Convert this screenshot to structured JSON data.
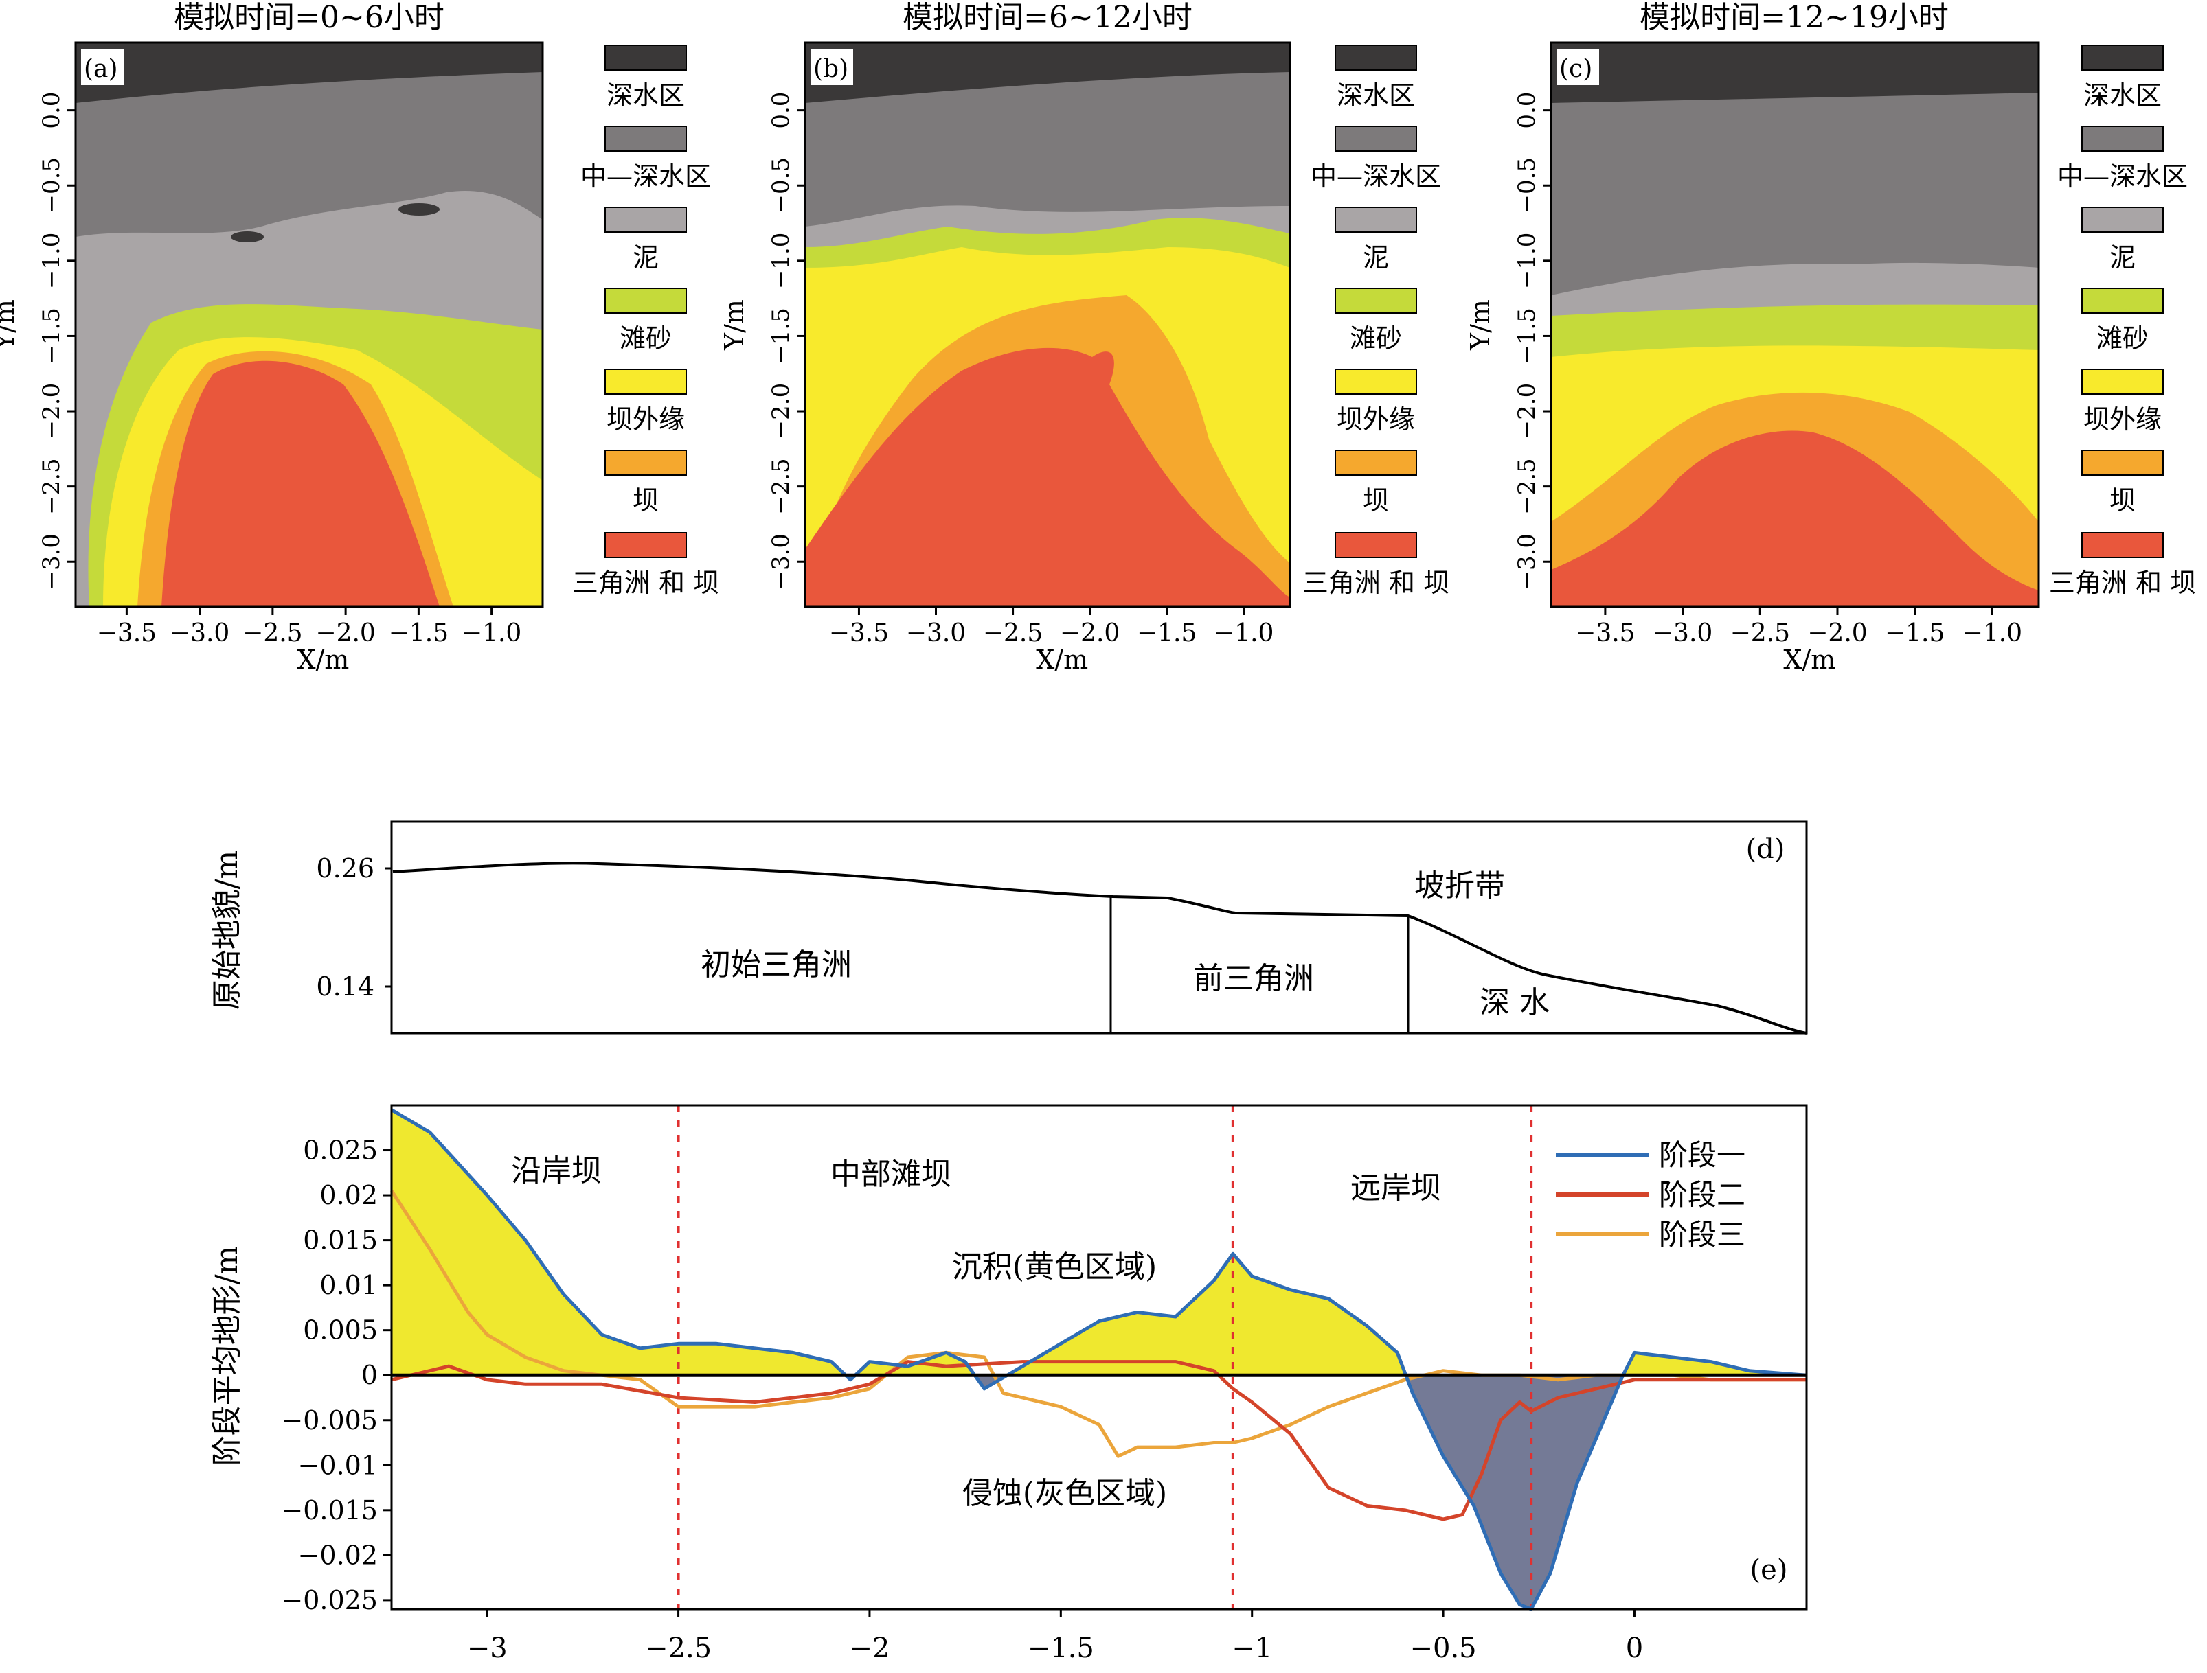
{
  "maps": [
    {
      "title": "模拟时间=0~6小时",
      "label": "(a)"
    },
    {
      "title": "模拟时间=6~12小时",
      "label": "(b)"
    },
    {
      "title": "模拟时间=12~19小时",
      "label": "(c)"
    }
  ],
  "map_axes": {
    "xlabel": "X/m",
    "ylabel": "Y/m",
    "x_ticks": [
      "−3.5",
      "−3.0",
      "−2.5",
      "−2.0",
      "−1.5",
      "−1.0"
    ],
    "y_ticks": [
      "0.0",
      "−0.5",
      "−1.0",
      "−1.5",
      "−2.0",
      "−2.5",
      "−3.0"
    ]
  },
  "legend": [
    {
      "label": "深水区",
      "color": "#3a3838"
    },
    {
      "label": "中—深水区",
      "color": "#7d7a7b"
    },
    {
      "label": "泥",
      "color": "#a9a5a6"
    },
    {
      "label": "滩砂",
      "color": "#c5da3a"
    },
    {
      "label": "坝外缘",
      "color": "#f8ea2c"
    },
    {
      "label": "坝",
      "color": "#f5a82e"
    },
    {
      "label": "三角洲 和 坝",
      "color": "#e9573c"
    }
  ],
  "profile": {
    "label": "(d)",
    "ylabel": "原始地貌/m",
    "y_ticks": [
      "0.26",
      "0.14"
    ],
    "zones": [
      "初始三角洲",
      "前三角洲",
      "深 水"
    ],
    "annotation": "坡折带"
  },
  "chart": {
    "label": "(e)",
    "ylabel": "阶段平均地形/m",
    "y_ticks": [
      "0.025",
      "0.02",
      "0.015",
      "0.01",
      "0.005",
      "0",
      "−0.005",
      "−0.01",
      "−0.015",
      "−0.02",
      "−0.025"
    ],
    "x_ticks": [
      "−3",
      "−2.5",
      "−2",
      "−1.5",
      "−1",
      "−0.5",
      "0"
    ],
    "zones": [
      "沿岸坝",
      "中部滩坝",
      "远岸坝"
    ],
    "annotations": {
      "deposition": "沉积(黄色区域)",
      "erosion": "侵蚀(灰色区域)"
    },
    "fill_colors": {
      "deposition": "#efe82f",
      "erosion": "#747a96"
    }
  },
  "chart_data": {
    "type": "line",
    "xlim": [
      -3.25,
      0.45
    ],
    "ylim": [
      -0.026,
      0.03
    ],
    "grid": false,
    "legend_position": "top-right",
    "zone_boundaries": [
      -2.5,
      -1.05,
      -0.27
    ],
    "series": [
      {
        "name": "阶段一",
        "color": "#2f6db5",
        "x": [
          -3.25,
          -3.15,
          -3.0,
          -2.9,
          -2.8,
          -2.7,
          -2.6,
          -2.5,
          -2.4,
          -2.3,
          -2.2,
          -2.1,
          -2.05,
          -2.0,
          -1.9,
          -1.8,
          -1.75,
          -1.7,
          -1.6,
          -1.5,
          -1.4,
          -1.3,
          -1.2,
          -1.1,
          -1.05,
          -1.0,
          -0.9,
          -0.8,
          -0.7,
          -0.62,
          -0.58,
          -0.5,
          -0.42,
          -0.35,
          -0.3,
          -0.27,
          -0.22,
          -0.15,
          -0.08,
          -0.03,
          0.0,
          0.1,
          0.2,
          0.3,
          0.45
        ],
        "y": [
          0.0295,
          0.027,
          0.02,
          0.015,
          0.009,
          0.0045,
          0.003,
          0.0035,
          0.0035,
          0.003,
          0.0025,
          0.0015,
          -0.0005,
          0.0015,
          0.001,
          0.0025,
          0.0015,
          -0.0015,
          0.001,
          0.0035,
          0.006,
          0.007,
          0.0065,
          0.0105,
          0.0135,
          0.011,
          0.0095,
          0.0085,
          0.0055,
          0.0025,
          -0.002,
          -0.009,
          -0.0145,
          -0.022,
          -0.0255,
          -0.026,
          -0.022,
          -0.012,
          -0.005,
          0.0,
          0.0025,
          0.002,
          0.0015,
          0.0005,
          0.0
        ]
      },
      {
        "name": "阶段二",
        "color": "#d4442a",
        "x": [
          -3.25,
          -3.1,
          -3.0,
          -2.9,
          -2.7,
          -2.5,
          -2.3,
          -2.1,
          -2.0,
          -1.9,
          -1.8,
          -1.6,
          -1.4,
          -1.2,
          -1.1,
          -1.05,
          -1.0,
          -0.9,
          -0.8,
          -0.7,
          -0.6,
          -0.5,
          -0.45,
          -0.4,
          -0.35,
          -0.3,
          -0.27,
          -0.2,
          -0.1,
          0.0,
          0.1,
          0.2,
          0.3,
          0.45
        ],
        "y": [
          -0.0005,
          0.001,
          -0.0005,
          -0.001,
          -0.001,
          -0.0025,
          -0.003,
          -0.002,
          -0.001,
          0.0015,
          0.001,
          0.0015,
          0.0015,
          0.0015,
          0.0005,
          -0.0015,
          -0.003,
          -0.0065,
          -0.0125,
          -0.0145,
          -0.015,
          -0.016,
          -0.0155,
          -0.011,
          -0.005,
          -0.003,
          -0.004,
          -0.0025,
          -0.0015,
          -0.0005,
          -0.0005,
          -0.0005,
          -0.0005,
          -0.0005
        ]
      },
      {
        "name": "阶段三",
        "color": "#eba53b",
        "x": [
          -3.25,
          -3.15,
          -3.05,
          -3.0,
          -2.9,
          -2.8,
          -2.7,
          -2.6,
          -2.5,
          -2.4,
          -2.3,
          -2.2,
          -2.1,
          -2.0,
          -1.9,
          -1.8,
          -1.7,
          -1.65,
          -1.6,
          -1.5,
          -1.4,
          -1.35,
          -1.3,
          -1.2,
          -1.1,
          -1.05,
          -1.0,
          -0.9,
          -0.8,
          -0.7,
          -0.6,
          -0.5,
          -0.4,
          -0.3,
          -0.2,
          -0.1,
          0.0,
          0.1,
          0.2,
          0.3,
          0.45
        ],
        "y": [
          0.0205,
          0.014,
          0.007,
          0.0045,
          0.002,
          0.0005,
          0.0,
          -0.0005,
          -0.0035,
          -0.0035,
          -0.0035,
          -0.003,
          -0.0025,
          -0.0015,
          0.002,
          0.0025,
          0.002,
          -0.002,
          -0.0025,
          -0.0035,
          -0.0055,
          -0.009,
          -0.008,
          -0.008,
          -0.0075,
          -0.0075,
          -0.007,
          -0.0055,
          -0.0035,
          -0.002,
          -0.0005,
          0.0005,
          0.0,
          0.0,
          -0.0005,
          0.0,
          0.0,
          0.0,
          -0.0005,
          -0.0005,
          -0.0005
        ]
      }
    ]
  }
}
